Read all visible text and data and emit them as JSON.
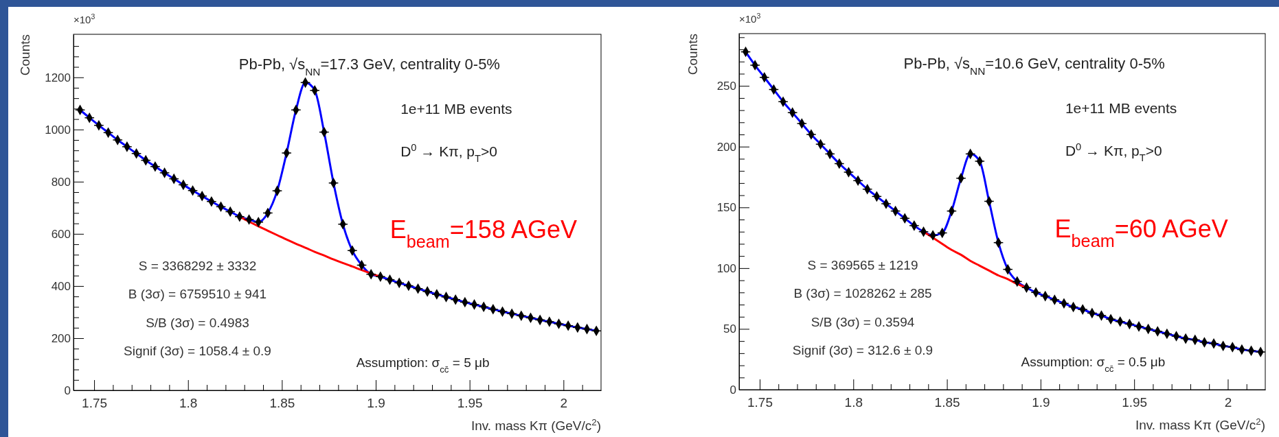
{
  "chart_data": [
    {
      "type": "scatter",
      "title": "Pb-Pb, √s$_{NN}$=17.3 GeV, centrality 0-5%",
      "xlabel": "Inv. mass Kπ (GeV/c$^{2}$)",
      "ylabel": "Counts",
      "annotations": [
        "×10$^{3}$",
        "1e+11 MB events",
        "D$^{0}$ → Kπ, p$_{T}$>0",
        "E$_{beam}$=158 AGeV",
        "S = 3368292 ± 3332",
        "B (3σ) = 6759510 ± 941",
        "S/B (3σ) = 0.4983",
        "Signif (3σ) = 1058.4 ± 0.9",
        "Assumption: σ$_{cc̄}$ = 5 μb"
      ],
      "xlim": [
        1.739,
        2.02
      ],
      "ylim": [
        0,
        1365
      ],
      "xticks": [
        1.75,
        1.8,
        1.85,
        1.9,
        1.95,
        2,
        {
          "value": 1.76,
          "label": null
        },
        {
          "value": 1.77,
          "label": null
        },
        {
          "value": 1.78,
          "label": null
        },
        {
          "value": 1.79,
          "label": null
        },
        {
          "value": 1.81,
          "label": null
        },
        {
          "value": 1.82,
          "label": null
        },
        {
          "value": 1.83,
          "label": null
        },
        {
          "value": 1.84,
          "label": null
        },
        {
          "value": 1.86,
          "label": null
        },
        {
          "value": 1.87,
          "label": null
        },
        {
          "value": 1.88,
          "label": null
        },
        {
          "value": 1.89,
          "label": null
        },
        {
          "value": 1.91,
          "label": null
        },
        {
          "value": 1.92,
          "label": null
        },
        {
          "value": 1.93,
          "label": null
        },
        {
          "value": 1.94,
          "label": null
        },
        {
          "value": 1.96,
          "label": null
        },
        {
          "value": 1.97,
          "label": null
        },
        {
          "value": 1.98,
          "label": null
        },
        {
          "value": 1.99,
          "label": null
        },
        {
          "value": 2.01,
          "label": null
        }
      ],
      "yticks": [
        0,
        200,
        400,
        600,
        800,
        1000,
        1200,
        {
          "value": 40,
          "label": null
        },
        {
          "value": 80,
          "label": null
        },
        {
          "value": 120,
          "label": null
        },
        {
          "value": 160,
          "label": null
        },
        {
          "value": 240,
          "label": null
        },
        {
          "value": 280,
          "label": null
        },
        {
          "value": 320,
          "label": null
        },
        {
          "value": 360,
          "label": null
        },
        {
          "value": 440,
          "label": null
        },
        {
          "value": 480,
          "label": null
        },
        {
          "value": 520,
          "label": null
        },
        {
          "value": 560,
          "label": null
        },
        {
          "value": 640,
          "label": null
        },
        {
          "value": 680,
          "label": null
        },
        {
          "value": 720,
          "label": null
        },
        {
          "value": 760,
          "label": null
        },
        {
          "value": 840,
          "label": null
        },
        {
          "value": 880,
          "label": null
        },
        {
          "value": 920,
          "label": null
        },
        {
          "value": 960,
          "label": null
        },
        {
          "value": 1040,
          "label": null
        },
        {
          "value": 1080,
          "label": null
        },
        {
          "value": 1120,
          "label": null
        },
        {
          "value": 1160,
          "label": null
        },
        {
          "value": 1240,
          "label": null
        },
        {
          "value": 1280,
          "label": null
        },
        {
          "value": 1320,
          "label": null
        }
      ],
      "x": [
        1.7425,
        1.7475,
        1.7525,
        1.7575,
        1.7625,
        1.7675,
        1.7725,
        1.7775,
        1.7825,
        1.7875,
        1.7925,
        1.7975,
        1.8025,
        1.8075,
        1.8125,
        1.8175,
        1.8225,
        1.8275,
        1.8325,
        1.8375,
        1.8425,
        1.8475,
        1.8525,
        1.8575,
        1.8625,
        1.8675,
        1.8725,
        1.8775,
        1.8825,
        1.8875,
        1.8925,
        1.8975,
        1.9025,
        1.9075,
        1.9125,
        1.9175,
        1.9225,
        1.9275,
        1.9325,
        1.9375,
        1.9425,
        1.9475,
        1.9525,
        1.9575,
        1.9625,
        1.9675,
        1.9725,
        1.9775,
        1.9825,
        1.9875,
        1.9925,
        1.9975,
        2.0025,
        2.0075,
        2.0125,
        2.0175
      ],
      "series": [
        {
          "type": "line",
          "color": "#0000ff",
          "values": [
            1075,
            1045,
            1016,
            988,
            960,
            934,
            908,
            882,
            858,
            834,
            811,
            788,
            766,
            745,
            724,
            704,
            685,
            666,
            655,
            645,
            680,
            765,
            910,
            1075,
            1180,
            1150,
            990,
            795,
            637,
            536,
            480,
            445,
            436,
            424,
            412,
            401,
            390,
            379,
            368,
            358,
            348,
            338,
            329,
            320,
            311,
            302,
            294,
            286,
            278,
            270,
            263,
            255,
            248,
            241,
            235,
            228
          ]
        },
        {
          "type": "line",
          "color": "#ff0000",
          "x": [
            1.8275,
            1.8325,
            1.8375,
            1.8425,
            1.8475,
            1.8525,
            1.8575,
            1.8625,
            1.8675,
            1.8725,
            1.8775,
            1.8825,
            1.8875,
            1.8925,
            1.8975,
            1.9025
          ],
          "values": [
            666,
            647,
            629,
            612,
            595,
            578,
            562,
            547,
            531,
            517,
            502,
            488,
            475,
            461,
            448,
            436
          ]
        },
        {
          "type": "scatter",
          "color": "#000000",
          "marker": "diamond",
          "values": [
            1075,
            1045,
            1016,
            988,
            960,
            934,
            908,
            882,
            858,
            834,
            811,
            788,
            766,
            745,
            724,
            704,
            685,
            666,
            655,
            645,
            680,
            765,
            910,
            1075,
            1180,
            1150,
            990,
            795,
            637,
            536,
            480,
            445,
            436,
            424,
            412,
            401,
            390,
            379,
            368,
            358,
            348,
            338,
            329,
            320,
            311,
            302,
            294,
            286,
            278,
            270,
            263,
            255,
            248,
            241,
            235,
            228
          ],
          "xerrors": [
            0.0025,
            0.0025,
            0.0025,
            0.0025,
            0.0025,
            0.0025,
            0.0025,
            0.0025,
            0.0025,
            0.0025,
            0.0025,
            0.0025,
            0.0025,
            0.0025,
            0.0025,
            0.0025,
            0.0025,
            0.0025,
            0.0025,
            0.0025,
            0.0025,
            0.0025,
            0.0025,
            0.0025,
            0.0025,
            0.0025,
            0.0025,
            0.0025,
            0.0025,
            0.0025,
            0.0025,
            0.0025,
            0.0025,
            0.0025,
            0.0025,
            0.0025,
            0.0025,
            0.0025,
            0.0025,
            0.0025,
            0.0025,
            0.0025,
            0.0025,
            0.0025,
            0.0025,
            0.0025,
            0.0025,
            0.0025,
            0.0025,
            0.0025,
            0.0025,
            0.0025,
            0.0025,
            0.0025,
            0.0025,
            0.0025
          ]
        }
      ]
    },
    {
      "type": "scatter",
      "title": "Pb-Pb, √s$_{NN}$=10.6 GeV, centrality 0-5%",
      "xlabel": "Inv. mass Kπ (GeV/c$^{2}$)",
      "ylabel": "Counts",
      "annotations": [
        "×10$^{3}$",
        "1e+11 MB events",
        "D$^{0}$ → Kπ, p$_{T}$>0",
        "E$_{beam}$=60 AGeV",
        "S = 369565 ± 1219",
        "B (3σ) = 1028262 ± 285",
        "S/B (3σ) = 0.3594",
        "Signif (3σ) = 312.6 ± 0.9",
        "Assumption: σ$_{cc̄}$ = 0.5 μb"
      ],
      "xlim": [
        1.739,
        2.02
      ],
      "ylim": [
        0,
        293
      ],
      "xticks": [
        1.75,
        1.8,
        1.85,
        1.9,
        1.95,
        2,
        {
          "value": 1.76,
          "label": null
        },
        {
          "value": 1.77,
          "label": null
        },
        {
          "value": 1.78,
          "label": null
        },
        {
          "value": 1.79,
          "label": null
        },
        {
          "value": 1.81,
          "label": null
        },
        {
          "value": 1.82,
          "label": null
        },
        {
          "value": 1.83,
          "label": null
        },
        {
          "value": 1.84,
          "label": null
        },
        {
          "value": 1.86,
          "label": null
        },
        {
          "value": 1.87,
          "label": null
        },
        {
          "value": 1.88,
          "label": null
        },
        {
          "value": 1.89,
          "label": null
        },
        {
          "value": 1.91,
          "label": null
        },
        {
          "value": 1.92,
          "label": null
        },
        {
          "value": 1.93,
          "label": null
        },
        {
          "value": 1.94,
          "label": null
        },
        {
          "value": 1.96,
          "label": null
        },
        {
          "value": 1.97,
          "label": null
        },
        {
          "value": 1.98,
          "label": null
        },
        {
          "value": 1.99,
          "label": null
        },
        {
          "value": 2.01,
          "label": null
        }
      ],
      "yticks": [
        0,
        50,
        100,
        150,
        200,
        250,
        {
          "value": 10,
          "label": null
        },
        {
          "value": 20,
          "label": null
        },
        {
          "value": 30,
          "label": null
        },
        {
          "value": 40,
          "label": null
        },
        {
          "value": 60,
          "label": null
        },
        {
          "value": 70,
          "label": null
        },
        {
          "value": 80,
          "label": null
        },
        {
          "value": 90,
          "label": null
        },
        {
          "value": 110,
          "label": null
        },
        {
          "value": 120,
          "label": null
        },
        {
          "value": 130,
          "label": null
        },
        {
          "value": 140,
          "label": null
        },
        {
          "value": 160,
          "label": null
        },
        {
          "value": 170,
          "label": null
        },
        {
          "value": 180,
          "label": null
        },
        {
          "value": 190,
          "label": null
        },
        {
          "value": 210,
          "label": null
        },
        {
          "value": 220,
          "label": null
        },
        {
          "value": 230,
          "label": null
        },
        {
          "value": 240,
          "label": null
        },
        {
          "value": 260,
          "label": null
        },
        {
          "value": 270,
          "label": null
        },
        {
          "value": 280,
          "label": null
        },
        {
          "value": 290,
          "label": null
        }
      ],
      "x": [
        1.7425,
        1.7475,
        1.7525,
        1.7575,
        1.7625,
        1.7675,
        1.7725,
        1.7775,
        1.7825,
        1.7875,
        1.7925,
        1.7975,
        1.8025,
        1.8075,
        1.8125,
        1.8175,
        1.8225,
        1.8275,
        1.8325,
        1.8375,
        1.8425,
        1.8475,
        1.8525,
        1.8575,
        1.8625,
        1.8675,
        1.8725,
        1.8775,
        1.8825,
        1.8875,
        1.8925,
        1.8975,
        1.9025,
        1.9075,
        1.9125,
        1.9175,
        1.9225,
        1.9275,
        1.9325,
        1.9375,
        1.9425,
        1.9475,
        1.9525,
        1.9575,
        1.9625,
        1.9675,
        1.9725,
        1.9775,
        1.9825,
        1.9875,
        1.9925,
        1.9975,
        2.0025,
        2.0075,
        2.0125,
        2.0175
      ],
      "series": [
        {
          "type": "line",
          "color": "#0000ff",
          "values": [
            278,
            267,
            257,
            247,
            237,
            228,
            219,
            210,
            202,
            194,
            186,
            179,
            172,
            165,
            159,
            153,
            147,
            141,
            135,
            130,
            127,
            129,
            147,
            174,
            194,
            188,
            155,
            121,
            99,
            89,
            84,
            80,
            77,
            74,
            71,
            68,
            66,
            63,
            61,
            58,
            56,
            54,
            52,
            50,
            48,
            46,
            44,
            42,
            41,
            39,
            38,
            36,
            35,
            33,
            32,
            31
          ]
        },
        {
          "type": "line",
          "color": "#ff0000",
          "x": [
            1.8375,
            1.8425,
            1.8475,
            1.8525,
            1.8575,
            1.8625,
            1.8675,
            1.8725,
            1.8775,
            1.8825,
            1.8875,
            1.8925
          ],
          "values": [
            130,
            125,
            120,
            115,
            111,
            106,
            102,
            98,
            94,
            91,
            87,
            84
          ]
        },
        {
          "type": "scatter",
          "color": "#000000",
          "marker": "diamond",
          "values": [
            278,
            267,
            257,
            247,
            237,
            228,
            219,
            210,
            202,
            194,
            186,
            179,
            172,
            165,
            159,
            153,
            147,
            141,
            135,
            130,
            127,
            129,
            147,
            174,
            194,
            188,
            155,
            121,
            99,
            89,
            84,
            80,
            77,
            74,
            71,
            68,
            66,
            63,
            61,
            58,
            56,
            54,
            52,
            50,
            48,
            46,
            44,
            42,
            41,
            39,
            38,
            36,
            35,
            33,
            32,
            31
          ],
          "xerrors": [
            0.0025,
            0.0025,
            0.0025,
            0.0025,
            0.0025,
            0.0025,
            0.0025,
            0.0025,
            0.0025,
            0.0025,
            0.0025,
            0.0025,
            0.0025,
            0.0025,
            0.0025,
            0.0025,
            0.0025,
            0.0025,
            0.0025,
            0.0025,
            0.0025,
            0.0025,
            0.0025,
            0.0025,
            0.0025,
            0.0025,
            0.0025,
            0.0025,
            0.0025,
            0.0025,
            0.0025,
            0.0025,
            0.0025,
            0.0025,
            0.0025,
            0.0025,
            0.0025,
            0.0025,
            0.0025,
            0.0025,
            0.0025,
            0.0025,
            0.0025,
            0.0025,
            0.0025,
            0.0025,
            0.0025,
            0.0025,
            0.0025,
            0.0025,
            0.0025,
            0.0025,
            0.0025,
            0.0025,
            0.0025,
            0.0025
          ]
        }
      ]
    }
  ]
}
